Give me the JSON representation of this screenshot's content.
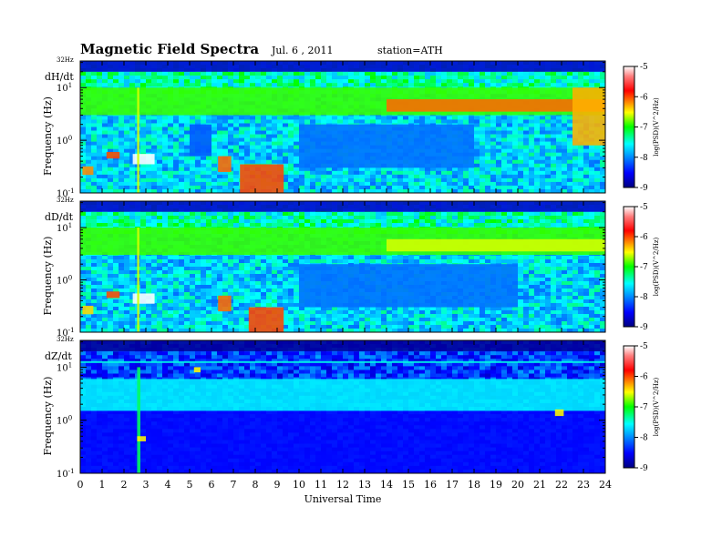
{
  "header": {
    "title": "Magnetic  Field  Spectra",
    "date": "Jul.  6  , 2011",
    "station": "station=ATH"
  },
  "chart_data": [
    {
      "type": "heatmap",
      "component": "dH/dt",
      "ylabel": "Frequency  (Hz)",
      "top_label": "32Hz",
      "colorbar_label": "log(PSD)(V^2/Hz)",
      "ylim": [
        0.1,
        32
      ],
      "yscale": "log",
      "xlim": [
        0,
        24
      ],
      "clim": [
        -9,
        -5
      ],
      "features": [
        {
          "t0": 0,
          "t1": 24,
          "f0": 3,
          "f1": 10,
          "level": -6.9
        },
        {
          "t0": 14,
          "t1": 24,
          "f0": 3.5,
          "f1": 6,
          "level": -6.1
        },
        {
          "t0": 22.5,
          "t1": 24,
          "f0": 0.8,
          "f1": 10,
          "level": -6.3
        },
        {
          "t0": 5,
          "t1": 6,
          "f0": 0.5,
          "f1": 2,
          "level": -8.2
        },
        {
          "t0": 10,
          "t1": 18,
          "f0": 0.3,
          "f1": 2,
          "level": -8.1
        },
        {
          "t0": 2.4,
          "t1": 3.4,
          "f0": 0.35,
          "f1": 0.55,
          "level": -5.0
        },
        {
          "t0": 1.2,
          "t1": 1.8,
          "f0": 0.45,
          "f1": 0.6,
          "level": -6.0
        },
        {
          "t0": 0.1,
          "t1": 0.6,
          "f0": 0.22,
          "f1": 0.32,
          "level": -6.2
        },
        {
          "t0": 6.3,
          "t1": 6.9,
          "f0": 0.25,
          "f1": 0.5,
          "level": -6.1
        },
        {
          "t0": 7.3,
          "t1": 9.3,
          "f0": 0.1,
          "f1": 0.35,
          "level": -6.0
        },
        {
          "t0": 2.6,
          "t1": 2.7,
          "f0": 0.1,
          "f1": 10,
          "level": -6.6
        },
        {
          "t0": 0,
          "t1": 24,
          "f0": 20,
          "f1": 32,
          "level": -8.7
        }
      ]
    },
    {
      "type": "heatmap",
      "component": "dD/dt",
      "ylabel": "Frequency  (Hz)",
      "top_label": "32Hz",
      "colorbar_label": "log(PSD)(V^2/Hz)",
      "ylim": [
        0.1,
        32
      ],
      "yscale": "log",
      "xlim": [
        0,
        24
      ],
      "clim": [
        -9,
        -5
      ],
      "features": [
        {
          "t0": 0,
          "t1": 24,
          "f0": 3,
          "f1": 10,
          "level": -6.9
        },
        {
          "t0": 14,
          "t1": 24,
          "f0": 3.5,
          "f1": 6,
          "level": -6.6
        },
        {
          "t0": 10,
          "t1": 20,
          "f0": 0.3,
          "f1": 2,
          "level": -8.1
        },
        {
          "t0": 2.4,
          "t1": 3.4,
          "f0": 0.35,
          "f1": 0.55,
          "level": -5.0
        },
        {
          "t0": 1.2,
          "t1": 1.8,
          "f0": 0.45,
          "f1": 0.6,
          "level": -6.0
        },
        {
          "t0": 0.1,
          "t1": 0.6,
          "f0": 0.22,
          "f1": 0.32,
          "level": -6.4
        },
        {
          "t0": 6.3,
          "t1": 6.9,
          "f0": 0.25,
          "f1": 0.5,
          "level": -6.1
        },
        {
          "t0": 7.7,
          "t1": 9.3,
          "f0": 0.1,
          "f1": 0.3,
          "level": -6.0
        },
        {
          "t0": 2.6,
          "t1": 2.7,
          "f0": 0.1,
          "f1": 10,
          "level": -6.6
        },
        {
          "t0": 0,
          "t1": 24,
          "f0": 20,
          "f1": 32,
          "level": -8.7
        }
      ]
    },
    {
      "type": "heatmap",
      "component": "dZ/dt",
      "ylabel": "Frequency  (Hz)",
      "top_label": "32Hz",
      "colorbar_label": "log(PSD)(V^2/Hz)",
      "ylim": [
        0.1,
        32
      ],
      "yscale": "log",
      "xlim": [
        0,
        24
      ],
      "clim": [
        -9,
        -5
      ],
      "xlabel": "Universal Time",
      "xticks": [
        0,
        1,
        2,
        3,
        4,
        5,
        6,
        7,
        8,
        9,
        10,
        11,
        12,
        13,
        14,
        15,
        16,
        17,
        18,
        19,
        20,
        21,
        22,
        23,
        24
      ],
      "features": [
        {
          "t0": 0,
          "t1": 24,
          "f0": 1.5,
          "f1": 6,
          "level": -7.6
        },
        {
          "t0": 0,
          "t1": 24,
          "f0": 0.1,
          "f1": 1.5,
          "level": -8.5
        },
        {
          "t0": 0,
          "t1": 24,
          "f0": 12,
          "f1": 13,
          "level": -7.5
        },
        {
          "t0": 5.2,
          "t1": 5.5,
          "f0": 8,
          "f1": 10,
          "level": -6.5
        },
        {
          "t0": 21.7,
          "t1": 22.1,
          "f0": 1.2,
          "f1": 1.6,
          "level": -6.5
        },
        {
          "t0": 2.6,
          "t1": 2.75,
          "f0": 0.1,
          "f1": 10,
          "level": -7.2
        },
        {
          "t0": 2.6,
          "t1": 3.0,
          "f0": 0.4,
          "f1": 0.5,
          "level": -6.5
        },
        {
          "t0": 0,
          "t1": 24,
          "f0": 20,
          "f1": 32,
          "level": -8.9
        }
      ]
    }
  ]
}
